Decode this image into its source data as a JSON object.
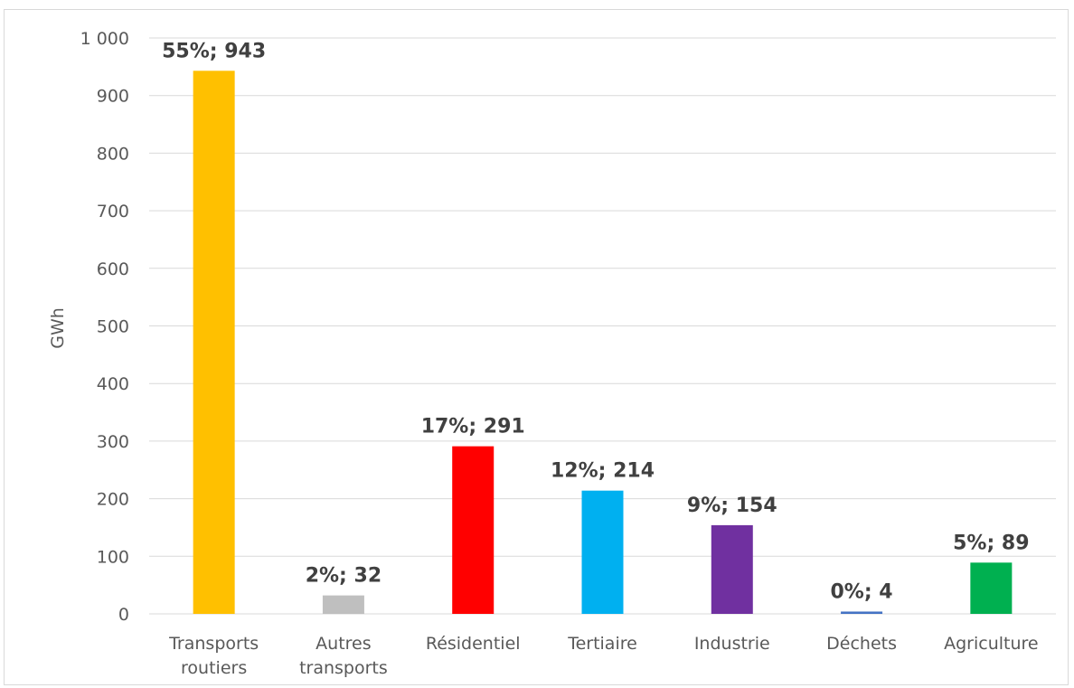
{
  "chart_data": {
    "type": "bar",
    "title": "",
    "xlabel": "",
    "ylabel": "GWh",
    "ylim": [
      0,
      1000
    ],
    "yticks": [
      0,
      100,
      200,
      300,
      400,
      500,
      600,
      700,
      800,
      900,
      1000
    ],
    "ytick_labels": [
      "0",
      "100",
      "200",
      "300",
      "400",
      "500",
      "600",
      "700",
      "800",
      "900",
      "1 000"
    ],
    "grid": true,
    "legend": "none",
    "categories": [
      [
        "Transports",
        "routiers"
      ],
      [
        "Autres",
        "transports"
      ],
      [
        "Résidentiel"
      ],
      [
        "Tertiaire"
      ],
      [
        "Industrie"
      ],
      [
        "Déchets"
      ],
      [
        "Agriculture"
      ]
    ],
    "values": [
      943,
      32,
      291,
      214,
      154,
      4,
      89
    ],
    "data_labels": [
      "55%; 943",
      "2%; 32",
      "17%; 291",
      "12%; 214",
      "9%; 154",
      "0%; 4",
      "5%; 89"
    ],
    "colors": [
      "#FFC000",
      "#BFBFBF",
      "#FF0000",
      "#00B0F0",
      "#7030A0",
      "#4472C4",
      "#00B050"
    ]
  }
}
